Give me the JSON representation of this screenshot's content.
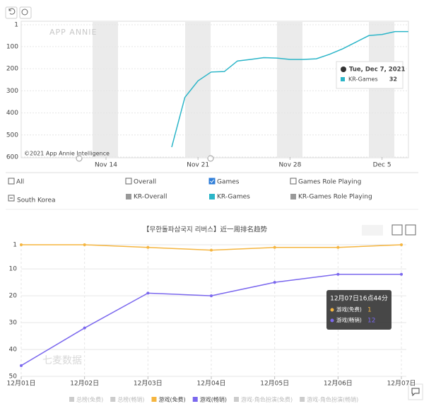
{
  "chart_data": [
    {
      "type": "line",
      "watermark": "APP ANNIE",
      "copyright": "©2021 App Annie Intelligence",
      "categories": [
        null,
        null,
        null,
        null,
        null,
        null,
        "Nov 14",
        null,
        null,
        null,
        null,
        null,
        null,
        "Nov 21",
        null,
        null,
        null,
        null,
        null,
        null,
        "Nov 28",
        null,
        null,
        null,
        null,
        null,
        null,
        "Dec 5",
        null,
        null
      ],
      "series": [
        {
          "name": "KR-Games",
          "color": "#2bb5c8",
          "values": [
            null,
            null,
            null,
            null,
            null,
            null,
            null,
            null,
            null,
            null,
            null,
            555,
            330,
            255,
            215,
            213,
            165,
            158,
            150,
            152,
            158,
            158,
            155,
            135,
            110,
            80,
            50,
            45,
            32,
            32
          ]
        }
      ],
      "ylim": [
        600,
        1
      ],
      "yticks": [
        1,
        100,
        200,
        300,
        400,
        500,
        600
      ],
      "grid": true,
      "tooltip": {
        "title": "Tue, Dec 7, 2021"
      }
    },
    {
      "type": "line",
      "title": "【무한돌파삼국지 리버스】近一周排名趋势",
      "watermark": "七麦数据",
      "categories": [
        "12月01日",
        "12月02日",
        "12月03日",
        "12月04日",
        "12月05日",
        "12月06日",
        "12月07日"
      ],
      "series": [
        {
          "name": "总榜(免费)",
          "color": "#cccccc"
        },
        {
          "name": "总榜(畅销)",
          "color": "#cccccc"
        },
        {
          "name": "游戏(免费)",
          "color": "#f5b53f",
          "values": [
            1,
            1,
            2,
            3,
            2,
            2,
            1
          ]
        },
        {
          "name": "游戏(畅销)",
          "color": "#7b68ee",
          "values": [
            46,
            32,
            19,
            20,
            15,
            12,
            12
          ]
        },
        {
          "name": "游戏-角色扮演(免费)",
          "color": "#cccccc"
        },
        {
          "name": "游戏-角色扮演(畅销)",
          "color": "#cccccc"
        }
      ],
      "ylim": [
        50,
        1
      ],
      "yticks": [
        1,
        10,
        20,
        30,
        40,
        50
      ],
      "grid": true,
      "tooltip": {
        "title": "12月07日16点44分"
      }
    }
  ],
  "filters": {
    "row1": [
      "All",
      "Overall",
      "Games",
      "Games Role Playing"
    ],
    "checked": "Games",
    "row2_label": "South Korea",
    "row2": [
      "KR-Overall",
      "KR-Games Role Playing"
    ]
  }
}
